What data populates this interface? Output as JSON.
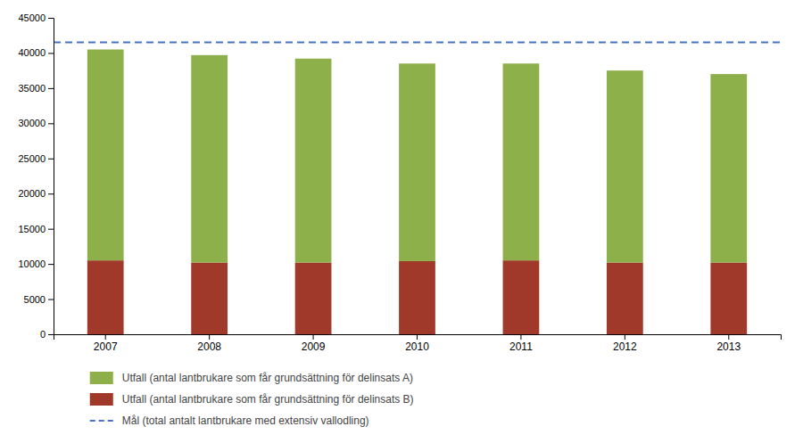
{
  "chart_data": {
    "type": "bar",
    "stacked": true,
    "grid": false,
    "legend": "bottom",
    "categories": [
      "2007",
      "2008",
      "2009",
      "2010",
      "2011",
      "2012",
      "2013"
    ],
    "series": [
      {
        "name": "Utfall (antal lantbrukare som får grundsättning för delinsats B)",
        "color": "#a0392a",
        "values": [
          10500,
          10200,
          10200,
          10400,
          10500,
          10200,
          10200
        ]
      },
      {
        "name": "Utfall (antal lantbrukare som får grundsättning för delinsats A)",
        "color": "#8db04a",
        "values": [
          30000,
          29500,
          29000,
          28100,
          28000,
          27300,
          26800
        ]
      }
    ],
    "reference_lines": [
      {
        "name": "Mål (total antalt lantbrukare med extensiv vallodling)",
        "value": 41500,
        "color": "#4472c4",
        "line_style": "dashed"
      }
    ],
    "ylim": [
      0,
      45000
    ],
    "yticks": [
      0,
      5000,
      10000,
      15000,
      20000,
      25000,
      30000,
      35000,
      40000,
      45000
    ]
  }
}
